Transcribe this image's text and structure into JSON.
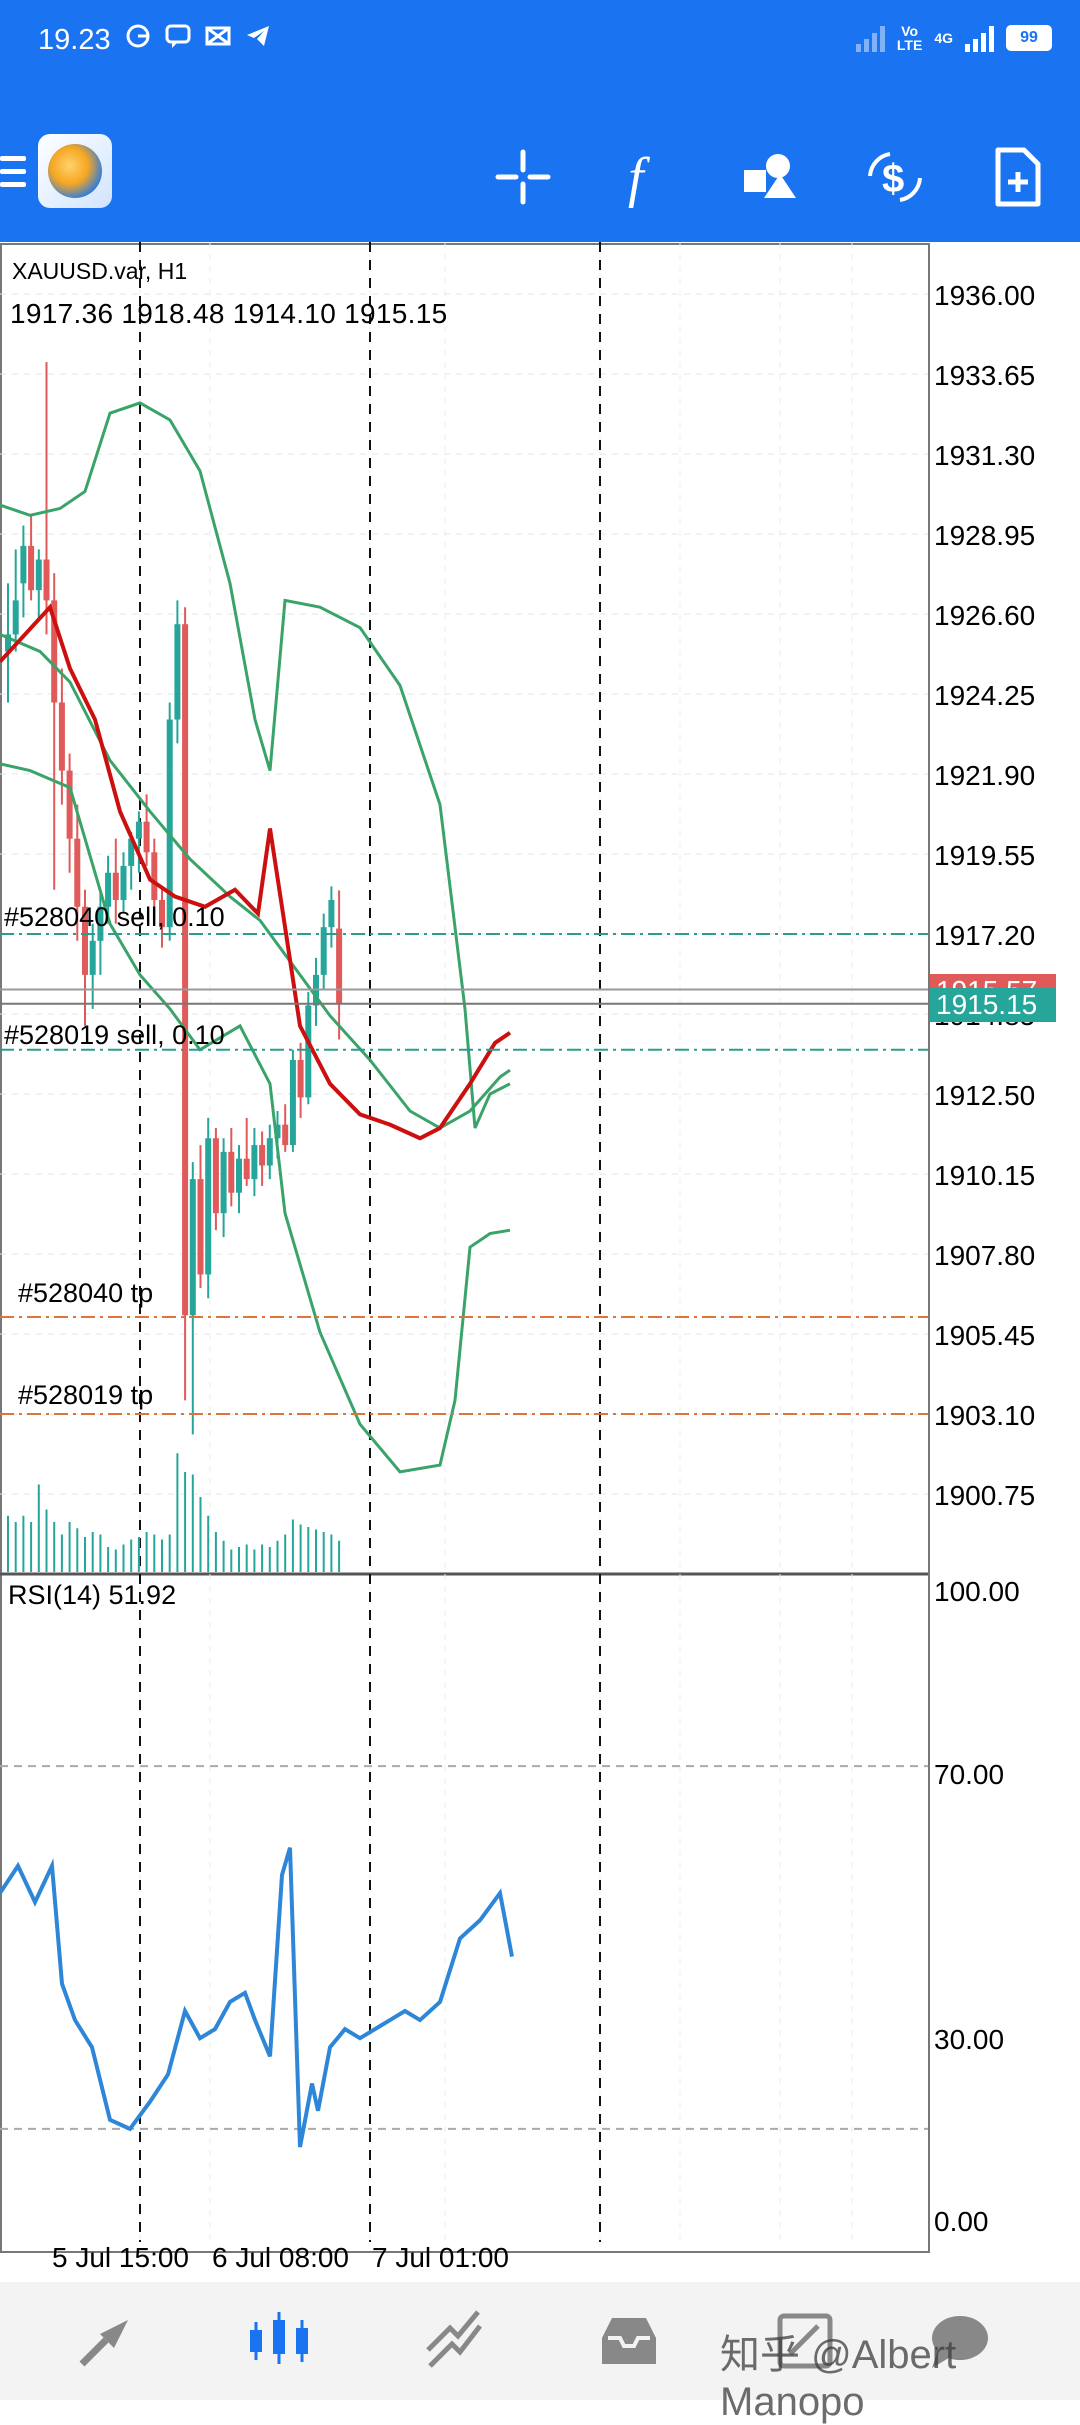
{
  "status_bar": {
    "time": "19.23",
    "icons": [
      "g-icon",
      "chat-icon",
      "capcut-icon",
      "telegram-icon"
    ],
    "network_label_top": "Vo",
    "network_label_bottom": "LTE",
    "network_type": "4G",
    "battery": "99"
  },
  "toolbar": {
    "buttons": [
      "crosshair",
      "indicators",
      "objects",
      "timeframe-trade",
      "new-order"
    ]
  },
  "chart": {
    "symbol": "XAUUSD.var, H1",
    "ohlc": "1917.36 1918.48 1914.10 1915.15",
    "orders": [
      {
        "label": "#528040 sell, 0.10",
        "price": 1917.2
      },
      {
        "label": "#528019 sell, 0.10",
        "price": 1913.8
      }
    ],
    "take_profits": [
      {
        "label": "#528040 tp",
        "price": 1905.95
      },
      {
        "label": "#528019 tp",
        "price": 1903.1
      }
    ],
    "price_ticks": [
      "1936.00",
      "1933.65",
      "1931.30",
      "1928.95",
      "1926.60",
      "1924.25",
      "1921.90",
      "1919.55",
      "1917.20",
      "1914.85",
      "1912.50",
      "1910.15",
      "1907.80",
      "1905.45",
      "1903.10",
      "1900.75"
    ],
    "ask_price": "1915.57",
    "bid_price": "1915.15",
    "colors": {
      "bull": "#26a69a",
      "bear": "#e05a5a",
      "bollinger": "#3aa36a",
      "ma": "#cc1010",
      "order_line": "#2a9d8f",
      "tp_line": "#e0733a",
      "rsi": "#2e86d8",
      "ask": "#e05a5a",
      "bid": "#26a69a"
    },
    "rsi": {
      "label": "RSI(14) 51.92",
      "ticks": [
        "100.00",
        "70.00",
        "30.00",
        "0.00"
      ]
    },
    "time_labels": [
      "5 Jul 15:00",
      "6 Jul 08:00",
      "7 Jul 01:00"
    ]
  },
  "bottom_nav": {
    "items": [
      "quotes",
      "chart",
      "trade",
      "history",
      "messages"
    ],
    "watermark": "知乎 @Albert Manopo"
  }
}
